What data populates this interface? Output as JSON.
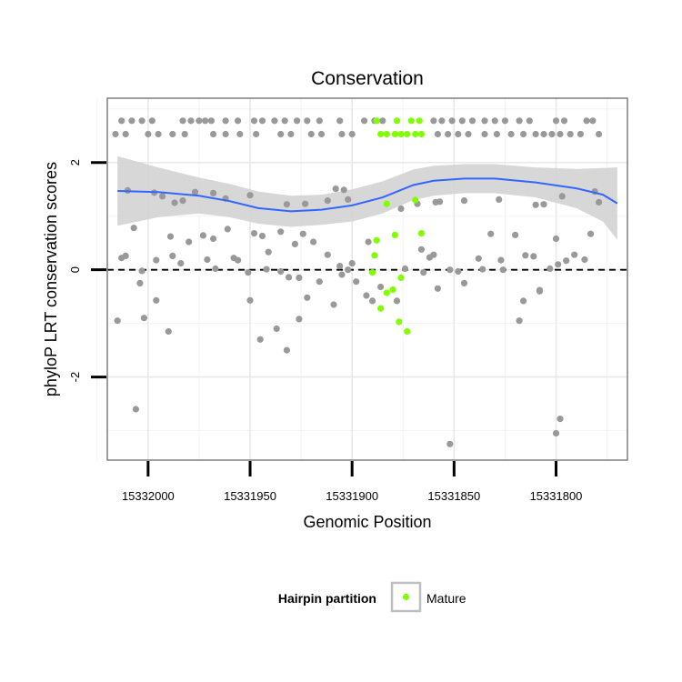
{
  "chart_data": {
    "type": "scatter",
    "title": "Conservation",
    "xlabel": "Genomic Position",
    "ylabel": "phyloP LRT conservation scores",
    "x_reversed": true,
    "xlim": [
      15332020,
      15331765
    ],
    "ylim": [
      -3.55,
      3.2
    ],
    "x_ticks": [
      15332000,
      15331950,
      15331900,
      15331850,
      15331800
    ],
    "x_tick_labels": [
      "15332000",
      "15331950",
      "15331900",
      "15331850",
      "15331800"
    ],
    "y_ticks": [
      -2,
      0,
      2
    ],
    "y_tick_labels": [
      "-2",
      "0",
      "2"
    ],
    "grid": true,
    "reference_line": {
      "y": 0,
      "style": "dashed"
    },
    "legend": {
      "title": "Hairpin partition",
      "position": "bottom",
      "entries": [
        {
          "label": "Mature",
          "color": "#7fff00"
        }
      ]
    },
    "colors": {
      "other": "#999999",
      "mature": "#7fff00",
      "smooth": "#3366ff",
      "band": "#d3d3d3"
    },
    "series": [
      {
        "role": "other",
        "points": [
          [
            15332013,
            2.78
          ],
          [
            15332008,
            2.78
          ],
          [
            15332003,
            2.78
          ],
          [
            15331998,
            2.78
          ],
          [
            15331983,
            2.78
          ],
          [
            15331979,
            2.78
          ],
          [
            15331975,
            2.78
          ],
          [
            15331972,
            2.78
          ],
          [
            15331969,
            2.78
          ],
          [
            15331962,
            2.78
          ],
          [
            15331956,
            2.78
          ],
          [
            15331948,
            2.78
          ],
          [
            15331944,
            2.78
          ],
          [
            15331938,
            2.78
          ],
          [
            15331933,
            2.78
          ],
          [
            15331927,
            2.78
          ],
          [
            15331922,
            2.78
          ],
          [
            15331916,
            2.78
          ],
          [
            15331906,
            2.78
          ],
          [
            15331894,
            2.78
          ],
          [
            15331889,
            2.78
          ],
          [
            15331885,
            2.78
          ],
          [
            15331860,
            2.78
          ],
          [
            15331856,
            2.78
          ],
          [
            15331851,
            2.78
          ],
          [
            15331846,
            2.78
          ],
          [
            15331841,
            2.78
          ],
          [
            15331835,
            2.78
          ],
          [
            15331830,
            2.78
          ],
          [
            15331825,
            2.78
          ],
          [
            15331818,
            2.78
          ],
          [
            15331813,
            2.78
          ],
          [
            15331800,
            2.78
          ],
          [
            15331796,
            2.78
          ],
          [
            15331785,
            2.78
          ],
          [
            15331782,
            2.78
          ],
          [
            15332016,
            2.53
          ],
          [
            15332011,
            2.53
          ],
          [
            15332000,
            2.53
          ],
          [
            15331995,
            2.53
          ],
          [
            15331988,
            2.53
          ],
          [
            15331982,
            2.53
          ],
          [
            15331968,
            2.53
          ],
          [
            15331962,
            2.53
          ],
          [
            15331955,
            2.53
          ],
          [
            15331947,
            2.53
          ],
          [
            15331935,
            2.53
          ],
          [
            15331930,
            2.53
          ],
          [
            15331920,
            2.53
          ],
          [
            15331915,
            2.53
          ],
          [
            15331905,
            2.53
          ],
          [
            15331900,
            2.53
          ],
          [
            15331858,
            2.53
          ],
          [
            15331853,
            2.53
          ],
          [
            15331848,
            2.53
          ],
          [
            15331843,
            2.53
          ],
          [
            15331835,
            2.53
          ],
          [
            15331829,
            2.53
          ],
          [
            15331822,
            2.53
          ],
          [
            15331816,
            2.53
          ],
          [
            15331810,
            2.53
          ],
          [
            15331806,
            2.53
          ],
          [
            15331802,
            2.53
          ],
          [
            15331798,
            2.53
          ],
          [
            15331793,
            2.53
          ],
          [
            15331788,
            2.53
          ],
          [
            15331779,
            2.53
          ],
          [
            15332010,
            1.48
          ],
          [
            15331977,
            1.45
          ],
          [
            15331968,
            1.43
          ],
          [
            15331962,
            1.33
          ],
          [
            15331950,
            1.39
          ],
          [
            15331932,
            1.22
          ],
          [
            15331923,
            1.23
          ],
          [
            15331912,
            1.29
          ],
          [
            15331908,
            1.51
          ],
          [
            15331904,
            1.49
          ],
          [
            15331902,
            1.31
          ],
          [
            15331876,
            1.14
          ],
          [
            15331868,
            1.23
          ],
          [
            15331859,
            1.26
          ],
          [
            15331857,
            1.27
          ],
          [
            15331845,
            1.29
          ],
          [
            15331828,
            1.31
          ],
          [
            15331810,
            1.21
          ],
          [
            15331806,
            1.22
          ],
          [
            15331797,
            1.37
          ],
          [
            15331781,
            1.46
          ],
          [
            15331779,
            1.26
          ],
          [
            15331993,
            1.37
          ],
          [
            15331997,
            1.44
          ],
          [
            15331987,
            1.25
          ],
          [
            15331983,
            1.29
          ],
          [
            15332007,
            0.78
          ],
          [
            15331980,
            0.52
          ],
          [
            15331973,
            0.64
          ],
          [
            15331968,
            0.58
          ],
          [
            15331958,
            0.22
          ],
          [
            15331956,
            0.18
          ],
          [
            15331948,
            0.68
          ],
          [
            15331944,
            0.63
          ],
          [
            15331941,
            0.33
          ],
          [
            15331935,
            0.71
          ],
          [
            15331928,
            0.48
          ],
          [
            15331924,
            0.67
          ],
          [
            15331919,
            0.52
          ],
          [
            15331912,
            0.28
          ],
          [
            15331906,
            0.07
          ],
          [
            15331900,
            0.12
          ],
          [
            15331892,
            0.52
          ],
          [
            15331866,
            0.38
          ],
          [
            15331860,
            0.28
          ],
          [
            15331862,
            0.23
          ],
          [
            15331852,
            0.0
          ],
          [
            15331838,
            0.21
          ],
          [
            15331832,
            0.67
          ],
          [
            15331827,
            0.18
          ],
          [
            15331820,
            0.65
          ],
          [
            15331815,
            0.27
          ],
          [
            15331811,
            0.25
          ],
          [
            15331800,
            0.58
          ],
          [
            15331791,
            0.28
          ],
          [
            15331783,
            0.67
          ],
          [
            15331786,
            0.19
          ],
          [
            15331795,
            0.17
          ],
          [
            15332011,
            0.26
          ],
          [
            15332013,
            0.22
          ],
          [
            15331989,
            0.62
          ],
          [
            15331961,
            0.76
          ],
          [
            15331942,
            0.01
          ],
          [
            15331996,
            0.18
          ],
          [
            15331984,
            0.12
          ],
          [
            15331971,
            0.19
          ],
          [
            15331967,
            0.02
          ],
          [
            15331935,
            -0.03
          ],
          [
            15331931,
            -0.14
          ],
          [
            15331926,
            -0.15
          ],
          [
            15331916,
            -0.22
          ],
          [
            15331905,
            -0.09
          ],
          [
            15331902,
            -0.0
          ],
          [
            15331898,
            -0.22
          ],
          [
            15331893,
            -0.48
          ],
          [
            15331890,
            -0.58
          ],
          [
            15331874,
            0.02
          ],
          [
            15331865,
            -0.05
          ],
          [
            15331858,
            -0.35
          ],
          [
            15331848,
            -0.03
          ],
          [
            15331845,
            -0.25
          ],
          [
            15331836,
            0.01
          ],
          [
            15331826,
            -0.0
          ],
          [
            15331808,
            -0.38
          ],
          [
            15331803,
            0.02
          ],
          [
            15331799,
            0.1
          ],
          [
            15332003,
            -0.02
          ],
          [
            15332004,
            -0.25
          ],
          [
            15331988,
            0.26
          ],
          [
            15331951,
            -0.05
          ],
          [
            15331886,
            -0.32
          ],
          [
            15331878,
            -0.58
          ],
          [
            15332015,
            -0.95
          ],
          [
            15332002,
            -0.9
          ],
          [
            15331996,
            -0.57
          ],
          [
            15331990,
            -1.15
          ],
          [
            15331950,
            -0.57
          ],
          [
            15331945,
            -1.3
          ],
          [
            15331937,
            -1.1
          ],
          [
            15331932,
            -1.5
          ],
          [
            15331926,
            -0.92
          ],
          [
            15331922,
            -0.52
          ],
          [
            15331909,
            -0.65
          ],
          [
            15331818,
            -0.95
          ],
          [
            15331816,
            -0.58
          ],
          [
            15331808,
            -0.4
          ],
          [
            15332006,
            -2.6
          ],
          [
            15331852,
            -3.25
          ],
          [
            15331800,
            -3.05
          ],
          [
            15331798,
            -2.78
          ]
        ]
      },
      {
        "role": "mature",
        "name": "Mature",
        "points": [
          [
            15331888,
            2.78
          ],
          [
            15331878,
            2.78
          ],
          [
            15331871,
            2.78
          ],
          [
            15331867,
            2.78
          ],
          [
            15331886,
            2.53
          ],
          [
            15331883,
            2.53
          ],
          [
            15331879,
            2.53
          ],
          [
            15331876,
            2.53
          ],
          [
            15331873,
            2.53
          ],
          [
            15331869,
            2.53
          ],
          [
            15331866,
            2.53
          ],
          [
            15331883,
            1.23
          ],
          [
            15331879,
            0.65
          ],
          [
            15331866,
            0.68
          ],
          [
            15331869,
            1.3
          ],
          [
            15331889,
            0.27
          ],
          [
            15331888,
            0.55
          ],
          [
            15331890,
            -0.05
          ],
          [
            15331876,
            -0.15
          ],
          [
            15331880,
            -0.37
          ],
          [
            15331883,
            -0.43
          ],
          [
            15331886,
            -0.72
          ],
          [
            15331877,
            -0.97
          ],
          [
            15331873,
            -1.15
          ]
        ]
      }
    ],
    "smooth": [
      [
        15332015,
        1.47
      ],
      [
        15331995,
        1.45
      ],
      [
        15331975,
        1.38
      ],
      [
        15331960,
        1.28
      ],
      [
        15331946,
        1.15
      ],
      [
        15331930,
        1.09
      ],
      [
        15331915,
        1.12
      ],
      [
        15331900,
        1.2
      ],
      [
        15331885,
        1.35
      ],
      [
        15331870,
        1.58
      ],
      [
        15331860,
        1.66
      ],
      [
        15331845,
        1.7
      ],
      [
        15331830,
        1.7
      ],
      [
        15331810,
        1.63
      ],
      [
        15331790,
        1.52
      ],
      [
        15331777,
        1.4
      ],
      [
        15331770,
        1.24
      ]
    ],
    "band": {
      "upper": [
        [
          15332015,
          2.12
        ],
        [
          15331995,
          1.91
        ],
        [
          15331975,
          1.72
        ],
        [
          15331960,
          1.6
        ],
        [
          15331946,
          1.46
        ],
        [
          15331930,
          1.38
        ],
        [
          15331915,
          1.4
        ],
        [
          15331900,
          1.5
        ],
        [
          15331885,
          1.65
        ],
        [
          15331870,
          1.87
        ],
        [
          15331860,
          1.94
        ],
        [
          15331845,
          1.97
        ],
        [
          15331830,
          1.97
        ],
        [
          15331810,
          1.91
        ],
        [
          15331790,
          1.88
        ],
        [
          15331777,
          1.9
        ],
        [
          15331770,
          1.91
        ]
      ],
      "lower": [
        [
          15332015,
          0.82
        ],
        [
          15331995,
          0.98
        ],
        [
          15331975,
          1.05
        ],
        [
          15331960,
          0.98
        ],
        [
          15331946,
          0.86
        ],
        [
          15331930,
          0.8
        ],
        [
          15331915,
          0.84
        ],
        [
          15331900,
          0.9
        ],
        [
          15331885,
          1.05
        ],
        [
          15331870,
          1.3
        ],
        [
          15331860,
          1.38
        ],
        [
          15331845,
          1.43
        ],
        [
          15331830,
          1.43
        ],
        [
          15331810,
          1.35
        ],
        [
          15331790,
          1.15
        ],
        [
          15331777,
          0.9
        ],
        [
          15331770,
          0.56
        ]
      ]
    }
  }
}
